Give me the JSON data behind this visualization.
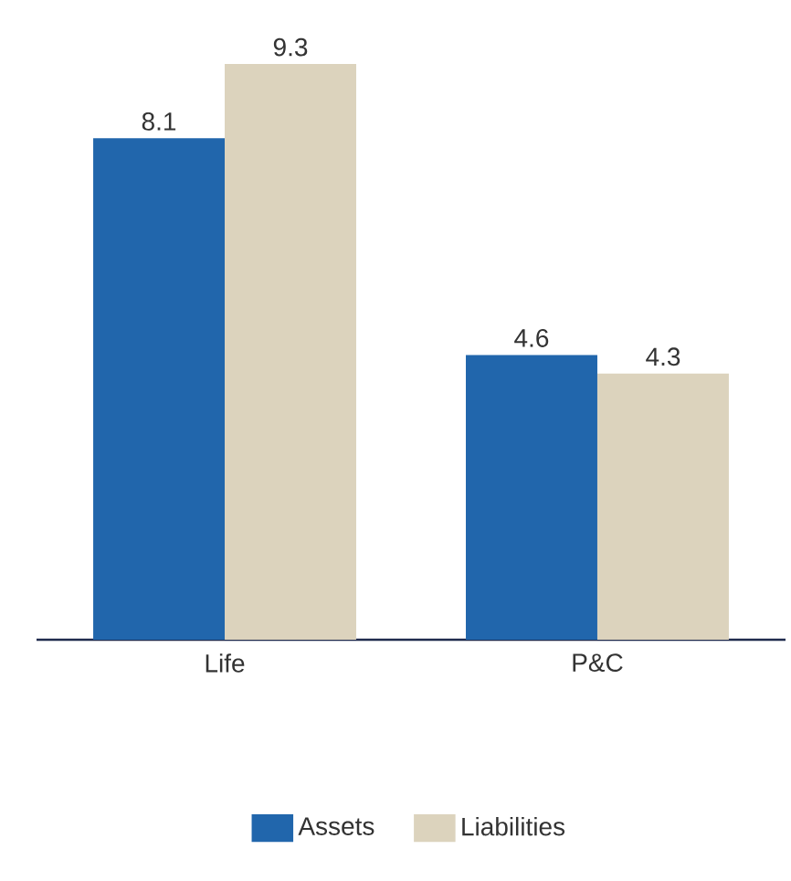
{
  "chart_data": {
    "type": "bar",
    "categories": [
      "Life",
      "P&C"
    ],
    "series": [
      {
        "name": "Assets",
        "color": "#2166ac",
        "values": [
          8.1,
          4.6
        ]
      },
      {
        "name": "Liabilities",
        "color": "#dcd3bd",
        "values": [
          9.3,
          4.3
        ]
      }
    ],
    "ylim": [
      0,
      9.3
    ],
    "data_labels": true,
    "legend": "bottom"
  }
}
